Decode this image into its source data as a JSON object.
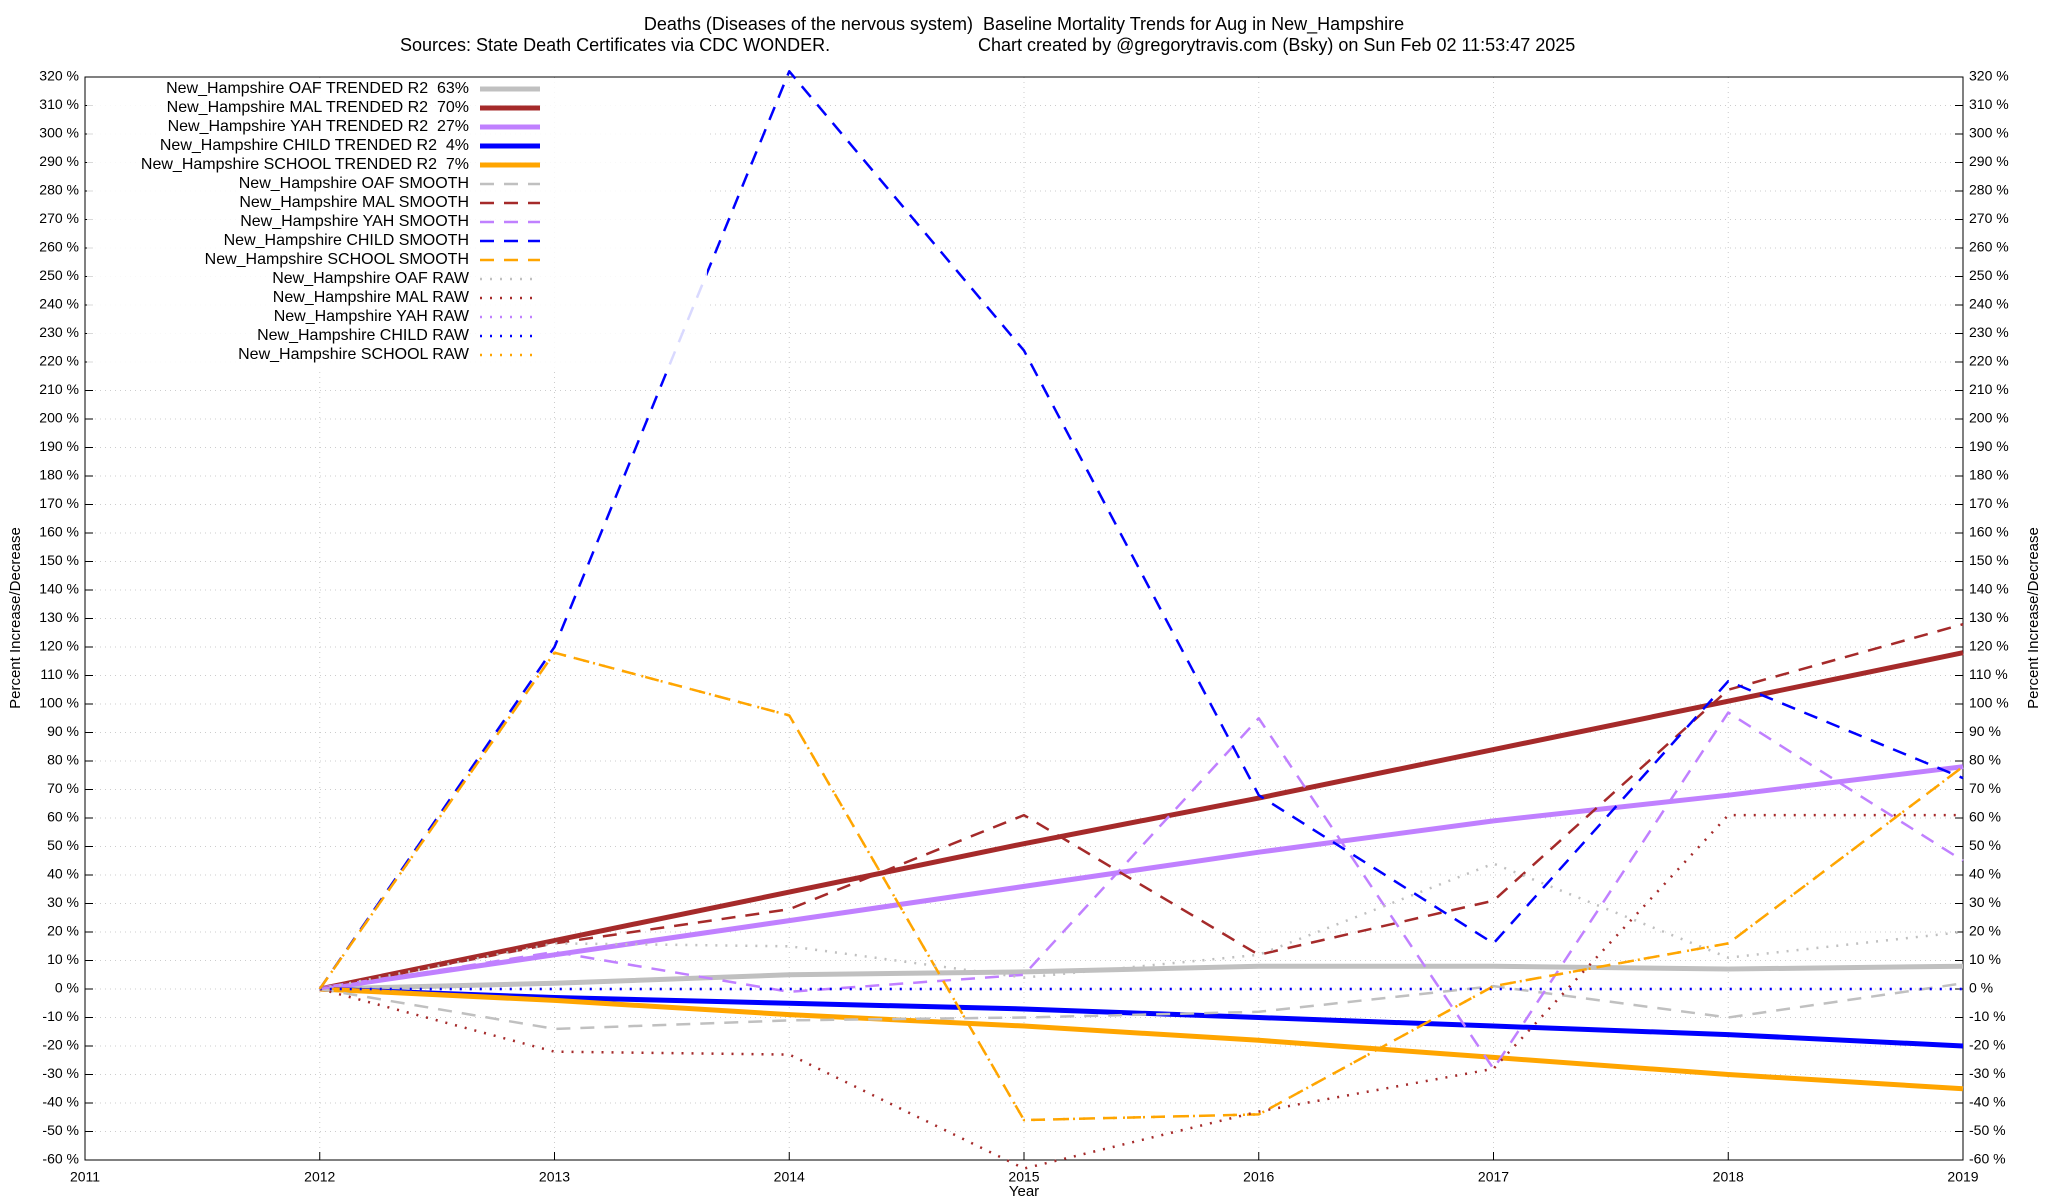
{
  "chart_data": {
    "type": "line",
    "title": "Deaths (Diseases of the nervous system)  Baseline Mortality Trends for Aug in New_Hampshire",
    "subtitle": "Sources: State Death Certificates via CDC WONDER.",
    "credit": "Chart created by @gregorytravis.com (Bsky) on Sun Feb 02 11:53:47 2025",
    "xlabel": "Year",
    "ylabel": "Percent Increase/Decrease",
    "x": [
      2012,
      2013,
      2014,
      2015,
      2016,
      2017,
      2018,
      2019
    ],
    "xlim": [
      2011,
      2019
    ],
    "xticks": [
      2011,
      2012,
      2013,
      2014,
      2015,
      2016,
      2017,
      2018,
      2019
    ],
    "ylim": [
      -60,
      320
    ],
    "yticks": [
      {
        "value": -60,
        "label": "-60 %"
      },
      {
        "value": -50,
        "label": "-50 %"
      },
      {
        "value": -40,
        "label": "-40 %"
      },
      {
        "value": -30,
        "label": "-30 %"
      },
      {
        "value": -20,
        "label": "-20 %"
      },
      {
        "value": -10,
        "label": "-10 %"
      },
      {
        "value": 0,
        "label": "0 %"
      },
      {
        "value": 10,
        "label": "10 %"
      },
      {
        "value": 20,
        "label": "20 %"
      },
      {
        "value": 30,
        "label": "30 %"
      },
      {
        "value": 40,
        "label": "40 %"
      },
      {
        "value": 50,
        "label": "50 %"
      },
      {
        "value": 60,
        "label": "60 %"
      },
      {
        "value": 70,
        "label": "70 %"
      },
      {
        "value": 80,
        "label": "80 %"
      },
      {
        "value": 90,
        "label": "90 %"
      },
      {
        "value": 100,
        "label": "100 %"
      },
      {
        "value": 110,
        "label": "110 %"
      },
      {
        "value": 120,
        "label": "120 %"
      },
      {
        "value": 130,
        "label": "130 %"
      },
      {
        "value": 140,
        "label": "140 %"
      },
      {
        "value": 150,
        "label": "150 %"
      },
      {
        "value": 160,
        "label": "160 %"
      },
      {
        "value": 170,
        "label": "170 %"
      },
      {
        "value": 180,
        "label": "180 %"
      },
      {
        "value": 190,
        "label": "190 %"
      },
      {
        "value": 200,
        "label": "200 %"
      },
      {
        "value": 210,
        "label": "210 %"
      },
      {
        "value": 220,
        "label": "220 %"
      },
      {
        "value": 230,
        "label": "230 %"
      },
      {
        "value": 240,
        "label": "240 %"
      },
      {
        "value": 250,
        "label": "250 %"
      },
      {
        "value": 260,
        "label": "260 %"
      },
      {
        "value": 270,
        "label": "270 %"
      },
      {
        "value": 280,
        "label": "280 %"
      },
      {
        "value": 290,
        "label": "290 %"
      },
      {
        "value": 300,
        "label": "300 %"
      },
      {
        "value": 310,
        "label": "310 %"
      },
      {
        "value": 320,
        "label": "320 %"
      }
    ],
    "grid": true,
    "legend": "top-left",
    "series": [
      {
        "name": "New_Hampshire OAF TRENDED R2  63%",
        "color": "#c0c0c0",
        "dash": "solid",
        "values": [
          0,
          2,
          5,
          6,
          8,
          8,
          7,
          8
        ]
      },
      {
        "name": "New_Hampshire MAL TRENDED R2  70%",
        "color": "#a52a2a",
        "dash": "solid",
        "values": [
          0,
          17,
          34,
          51,
          67,
          84,
          101,
          118
        ]
      },
      {
        "name": "New_Hampshire YAH TRENDED R2  27%",
        "color": "#c080ff",
        "dash": "solid",
        "values": [
          0,
          12,
          24,
          36,
          48,
          59,
          68,
          78
        ]
      },
      {
        "name": "New_Hampshire CHILD TRENDED R2  4%",
        "color": "#0000ff",
        "dash": "solid",
        "values": [
          0,
          -3,
          -5,
          -7,
          -10,
          -13,
          -16,
          -20
        ]
      },
      {
        "name": "New_Hampshire SCHOOL TRENDED R2  7%",
        "color": "#ffa500",
        "dash": "solid",
        "values": [
          0,
          -4,
          -9,
          -13,
          -18,
          -24,
          -30,
          -35
        ]
      },
      {
        "name": "New_Hampshire OAF SMOOTH",
        "color": "#c0c0c0",
        "dash": "dashed",
        "values": [
          0,
          -14,
          -11,
          -10,
          -8,
          1,
          -10,
          2
        ]
      },
      {
        "name": "New_Hampshire MAL SMOOTH",
        "color": "#a52a2a",
        "dash": "dashed",
        "values": [
          0,
          16,
          28,
          61,
          12,
          31,
          105,
          128
        ]
      },
      {
        "name": "New_Hampshire YAH SMOOTH",
        "color": "#c080ff",
        "dash": "dashed",
        "values": [
          0,
          13,
          -1,
          5,
          95,
          -28,
          97,
          45
        ]
      },
      {
        "name": "New_Hampshire CHILD SMOOTH",
        "color": "#0000ff",
        "dash": "dashed",
        "values": [
          0,
          120,
          322,
          224,
          68,
          16,
          108,
          74
        ]
      },
      {
        "name": "New_Hampshire SCHOOL SMOOTH",
        "color": "#ffa500",
        "dash": "dashed",
        "values": [
          0,
          118,
          96,
          -46,
          -44,
          1,
          16,
          78
        ]
      },
      {
        "name": "New_Hampshire OAF RAW",
        "color": "#c0c0c0",
        "dash": "dotted",
        "values": [
          0,
          16,
          15,
          4,
          12,
          44,
          11,
          20
        ]
      },
      {
        "name": "New_Hampshire MAL RAW",
        "color": "#a52a2a",
        "dash": "dotted",
        "values": [
          0,
          -22,
          -23,
          -63,
          -43,
          -28,
          61,
          61
        ]
      },
      {
        "name": "New_Hampshire YAH RAW",
        "color": "#c080ff",
        "dash": "dotted",
        "values": [
          0,
          0,
          0,
          0,
          0,
          0,
          0,
          0
        ]
      },
      {
        "name": "New_Hampshire CHILD RAW",
        "color": "#0000ff",
        "dash": "dotted",
        "values": [
          0,
          0,
          0,
          0,
          0,
          0,
          0,
          0
        ]
      },
      {
        "name": "New_Hampshire SCHOOL RAW",
        "color": "#ffa500",
        "dash": "dotted",
        "values": [
          0,
          118,
          96,
          -46,
          -44,
          1,
          16,
          78
        ]
      }
    ]
  }
}
